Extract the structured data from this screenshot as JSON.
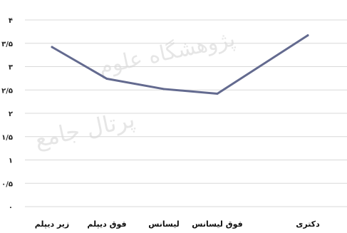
{
  "chart_data": {
    "type": "line",
    "title": "",
    "xlabel": "",
    "ylabel": "",
    "categories": [
      "زیر دیپلم",
      "فوق دیپلم",
      "لیسانس",
      "فوق لیسانس",
      "دکتری"
    ],
    "series": [
      {
        "values": [
          3.42,
          2.74,
          2.52,
          2.42,
          3.67
        ]
      }
    ],
    "ytick_labels": [
      "۴",
      "۳/۵",
      "۳",
      "۲/۵",
      "۲",
      "۱/۵",
      "۱",
      "۰/۵",
      "۰"
    ],
    "ytick_values": [
      4,
      3.5,
      3,
      2.5,
      2,
      1.5,
      1,
      0.5,
      0
    ],
    "ylim": [
      0,
      4
    ],
    "grid": true,
    "line_color": "#636a8f"
  },
  "watermark": {
    "line1": "پژوهشگاه علوم",
    "line2": "پرتال جامع"
  }
}
